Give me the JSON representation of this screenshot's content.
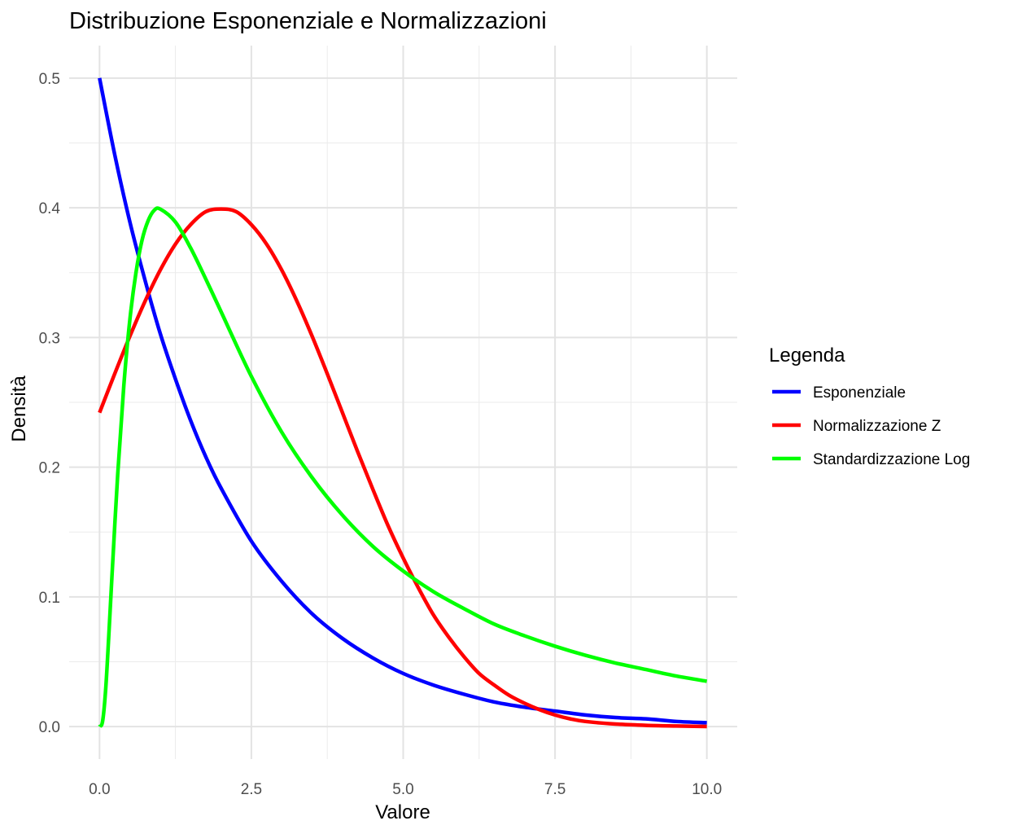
{
  "chart_data": {
    "type": "line",
    "title": "Distribuzione Esponenziale e Normalizzazioni",
    "xlabel": "Valore",
    "ylabel": "Densità",
    "xlim": [
      -0.5,
      10.5
    ],
    "ylim": [
      -0.025,
      0.525
    ],
    "x_ticks": [
      0.0,
      2.5,
      5.0,
      7.5,
      10.0
    ],
    "x_tick_labels": [
      "0.0",
      "2.5",
      "5.0",
      "7.5",
      "10.0"
    ],
    "y_ticks": [
      0.0,
      0.1,
      0.2,
      0.3,
      0.4,
      0.5
    ],
    "y_tick_labels": [
      "0.0",
      "0.1",
      "0.2",
      "0.3",
      "0.4",
      "0.5"
    ],
    "grid": true,
    "legend_title": "Legenda",
    "legend_position": "right",
    "series": [
      {
        "name": "Esponenziale",
        "color": "#0000FF",
        "x": [
          0,
          0.25,
          0.5,
          0.75,
          1,
          1.25,
          1.5,
          1.75,
          2,
          2.5,
          3,
          3.5,
          4,
          4.5,
          5,
          5.5,
          6,
          6.5,
          7,
          7.5,
          8,
          8.5,
          9,
          9.5,
          10
        ],
        "y": [
          0.5,
          0.441,
          0.389,
          0.344,
          0.303,
          0.268,
          0.236,
          0.208,
          0.184,
          0.143,
          0.112,
          0.087,
          0.068,
          0.053,
          0.041,
          0.032,
          0.025,
          0.019,
          0.015,
          0.012,
          0.009,
          0.007,
          0.006,
          0.004,
          0.003
        ]
      },
      {
        "name": "Normalizzazione Z",
        "color": "#FF0000",
        "x": [
          0,
          0.25,
          0.5,
          0.75,
          1,
          1.25,
          1.5,
          1.75,
          2,
          2.25,
          2.5,
          2.75,
          3,
          3.25,
          3.5,
          3.75,
          4,
          4.25,
          4.5,
          4.75,
          5,
          5.25,
          5.5,
          5.75,
          6,
          6.25,
          6.5,
          6.75,
          7,
          7.25,
          7.5,
          7.75,
          8,
          8.5,
          9,
          9.5,
          10
        ],
        "y": [
          0.242,
          0.272,
          0.301,
          0.328,
          0.352,
          0.372,
          0.387,
          0.397,
          0.399,
          0.397,
          0.387,
          0.372,
          0.352,
          0.328,
          0.301,
          0.272,
          0.242,
          0.212,
          0.183,
          0.155,
          0.13,
          0.107,
          0.086,
          0.069,
          0.054,
          0.041,
          0.032,
          0.024,
          0.018,
          0.013,
          0.009,
          0.006,
          0.004,
          0.002,
          0.001,
          0.0005,
          0.0001
        ]
      },
      {
        "name": "Standardizzazione Log",
        "color": "#00FF00",
        "x": [
          0,
          0.05,
          0.1,
          0.15,
          0.2,
          0.3,
          0.4,
          0.5,
          0.6,
          0.7,
          0.8,
          0.9,
          1,
          1.25,
          1.5,
          1.75,
          2,
          2.5,
          3,
          3.5,
          4,
          4.5,
          5,
          5.5,
          6,
          6.5,
          7,
          7.5,
          8,
          8.5,
          9,
          9.5,
          10
        ],
        "y": [
          0,
          0.004,
          0.028,
          0.068,
          0.112,
          0.195,
          0.263,
          0.314,
          0.35,
          0.375,
          0.39,
          0.398,
          0.399,
          0.389,
          0.369,
          0.345,
          0.32,
          0.27,
          0.227,
          0.192,
          0.163,
          0.139,
          0.12,
          0.104,
          0.091,
          0.079,
          0.07,
          0.062,
          0.055,
          0.049,
          0.044,
          0.039,
          0.035
        ]
      }
    ]
  }
}
